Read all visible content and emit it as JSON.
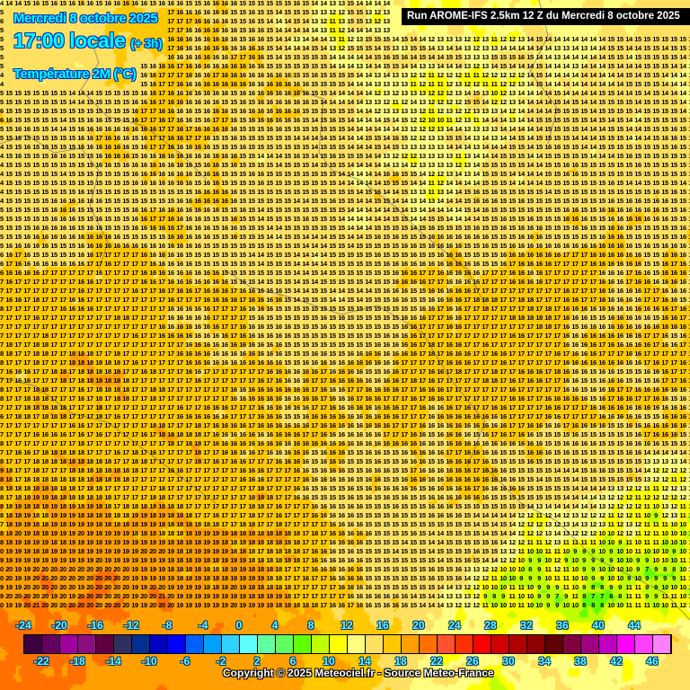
{
  "header": {
    "date": "Mercredi 8 octobre 2025",
    "time": "17:00 locale",
    "lead": "(+ 3h)",
    "parameter": "Température 2M (°C)",
    "run": "Run AROME-IFS 2.5km 12 Z du Mercredi 8 octobre 2025"
  },
  "legend": {
    "values": [
      -24,
      -22,
      -20,
      -18,
      -16,
      -14,
      -12,
      -10,
      -8,
      -6,
      -4,
      -2,
      0,
      2,
      4,
      6,
      8,
      10,
      12,
      14,
      16,
      18,
      20,
      22,
      24,
      26,
      28,
      30,
      32,
      34,
      36,
      38,
      40,
      42,
      44,
      46
    ],
    "colors": [
      "#3a0040",
      "#640060",
      "#a000a0",
      "#8a1080",
      "#600040",
      "#303060",
      "#003090",
      "#0000c0",
      "#0000ff",
      "#0060ff",
      "#00a0ff",
      "#30d0ff",
      "#60ffff",
      "#60ffa0",
      "#60ff60",
      "#60ff00",
      "#c0ff00",
      "#ffff00",
      "#ffff80",
      "#ffe060",
      "#ffc800",
      "#ffa000",
      "#ff7000",
      "#ff5030",
      "#ff3000",
      "#ff0000",
      "#d00000",
      "#b00000",
      "#900000",
      "#600000",
      "#800040",
      "#a00080",
      "#c000c0",
      "#ff00ff",
      "#ff40ff",
      "#ff80ff"
    ],
    "top_labels": [
      "-24",
      "-20",
      "-16",
      "-12",
      "-8",
      "-4",
      "0",
      "4",
      "8",
      "12",
      "16",
      "20",
      "24",
      "28",
      "32",
      "36",
      "40",
      "44"
    ],
    "bottom_labels": [
      "-22",
      "-18",
      "-14",
      "-10",
      "-6",
      "-2",
      "2",
      "6",
      "10",
      "14",
      "18",
      "22",
      "26",
      "30",
      "34",
      "38",
      "42",
      "46"
    ]
  },
  "temperature_grid_coarse": [
    [
      15,
      15,
      16,
      16,
      15,
      14,
      13,
      13,
      13,
      14,
      14,
      15
    ],
    [
      15,
      15,
      16,
      16,
      16,
      15,
      14,
      13,
      13,
      14,
      14,
      14
    ],
    [
      15,
      15,
      16,
      16,
      15,
      15,
      14,
      13,
      14,
      15,
      15,
      15
    ],
    [
      15,
      15,
      16,
      16,
      15,
      15,
      14,
      14,
      15,
      15,
      15,
      15
    ],
    [
      16,
      16,
      16,
      16,
      15,
      14,
      15,
      16,
      16,
      16,
      16,
      16
    ],
    [
      17,
      17,
      17,
      16,
      16,
      15,
      15,
      16,
      17,
      17,
      16,
      16
    ],
    [
      17,
      18,
      17,
      17,
      16,
      16,
      16,
      17,
      17,
      17,
      16,
      16
    ],
    [
      17,
      17,
      17,
      17,
      16,
      16,
      16,
      16,
      16,
      16,
      16,
      16
    ],
    [
      18,
      18,
      17,
      17,
      17,
      16,
      16,
      15,
      16,
      15,
      14,
      12
    ],
    [
      19,
      19,
      19,
      18,
      18,
      17,
      15,
      15,
      14,
      11,
      10,
      9
    ],
    [
      20,
      20,
      20,
      19,
      19,
      17,
      16,
      15,
      11,
      8,
      9,
      12
    ],
    [
      21,
      20,
      20,
      19,
      19,
      18,
      17,
      13,
      12,
      13,
      13,
      15
    ]
  ],
  "copyright": "Copyright © 2025 Meteociel.fr - Source Meteo-France"
}
